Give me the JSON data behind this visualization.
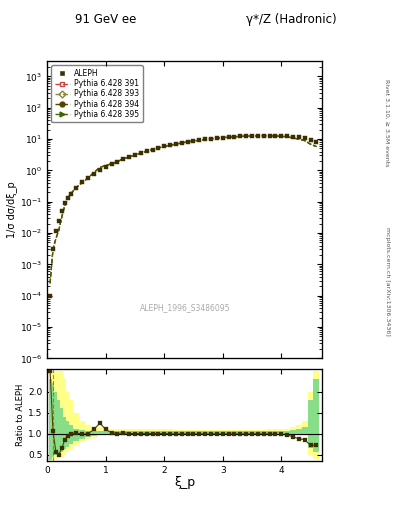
{
  "title_left": "91 GeV ee",
  "title_right": "γ*/Z (Hadronic)",
  "ylabel_main": "1/σ dσ/dξ_p",
  "ylabel_ratio": "Ratio to ALEPH",
  "xlabel": "ξ_p",
  "watermark": "ALEPH_1996_S3486095",
  "right_label_top": "Rivet 3.1.10, ≥ 3.5M events",
  "right_label_bottom": "mcplots.cern.ch [arXiv:1306.3436]",
  "ylim_main": [
    1e-06,
    3000.0
  ],
  "ylim_ratio": [
    0.35,
    2.55
  ],
  "xlim": [
    0.0,
    4.7
  ],
  "ratio_yticks": [
    0.5,
    1.0,
    1.5,
    2.0
  ],
  "xi_data": [
    0.05,
    0.1,
    0.15,
    0.2,
    0.25,
    0.3,
    0.35,
    0.4,
    0.5,
    0.6,
    0.7,
    0.8,
    0.9,
    1.0,
    1.1,
    1.2,
    1.3,
    1.4,
    1.5,
    1.6,
    1.7,
    1.8,
    1.9,
    2.0,
    2.1,
    2.2,
    2.3,
    2.4,
    2.5,
    2.6,
    2.7,
    2.8,
    2.9,
    3.0,
    3.1,
    3.2,
    3.3,
    3.4,
    3.5,
    3.6,
    3.7,
    3.8,
    3.9,
    4.0,
    4.1,
    4.2,
    4.3,
    4.4,
    4.5,
    4.6
  ],
  "aleph_data": [
    0.0001,
    0.003,
    0.012,
    0.025,
    0.05,
    0.09,
    0.13,
    0.18,
    0.28,
    0.42,
    0.58,
    0.78,
    1.0,
    1.3,
    1.6,
    1.9,
    2.3,
    2.7,
    3.1,
    3.6,
    4.1,
    4.6,
    5.2,
    5.8,
    6.4,
    7.0,
    7.6,
    8.2,
    8.8,
    9.3,
    9.8,
    10.3,
    10.8,
    11.2,
    11.6,
    12.0,
    12.3,
    12.5,
    12.7,
    12.8,
    12.9,
    12.8,
    12.7,
    12.5,
    12.2,
    11.8,
    11.3,
    10.5,
    9.5,
    8.0
  ],
  "pythia_ratio": [
    2.5,
    1.05,
    0.56,
    0.5,
    0.65,
    0.85,
    0.95,
    1.0,
    1.02,
    0.98,
    1.0,
    1.1,
    1.25,
    1.1,
    1.02,
    1.0,
    1.02,
    1.0,
    1.0,
    1.0,
    1.0,
    1.0,
    1.0,
    1.0,
    0.99,
    0.99,
    0.99,
    0.99,
    0.99,
    0.99,
    0.99,
    0.99,
    0.99,
    0.99,
    0.99,
    0.99,
    0.99,
    0.99,
    0.99,
    0.99,
    0.99,
    0.99,
    0.98,
    0.98,
    0.97,
    0.92,
    0.88,
    0.85,
    0.72,
    0.72
  ],
  "band_yellow_lo": [
    0.35,
    0.38,
    0.4,
    0.42,
    0.44,
    0.5,
    0.55,
    0.62,
    0.72,
    0.82,
    0.88,
    0.92,
    0.95,
    0.95,
    0.95,
    0.95,
    0.95,
    0.95,
    0.95,
    0.95,
    0.95,
    0.95,
    0.95,
    0.95,
    0.95,
    0.95,
    0.95,
    0.95,
    0.95,
    0.95,
    0.95,
    0.95,
    0.95,
    0.95,
    0.95,
    0.95,
    0.95,
    0.95,
    0.95,
    0.95,
    0.95,
    0.95,
    0.95,
    0.95,
    0.95,
    0.95,
    0.95,
    0.95,
    0.5,
    0.4
  ],
  "band_yellow_hi": [
    2.5,
    2.5,
    2.5,
    2.5,
    2.5,
    2.3,
    2.0,
    1.8,
    1.5,
    1.3,
    1.2,
    1.15,
    1.15,
    1.15,
    1.12,
    1.1,
    1.1,
    1.1,
    1.1,
    1.1,
    1.1,
    1.1,
    1.1,
    1.1,
    1.1,
    1.08,
    1.08,
    1.08,
    1.08,
    1.08,
    1.08,
    1.08,
    1.08,
    1.08,
    1.08,
    1.08,
    1.08,
    1.08,
    1.08,
    1.08,
    1.08,
    1.1,
    1.1,
    1.1,
    1.1,
    1.15,
    1.2,
    1.3,
    2.0,
    2.5
  ],
  "band_green_lo": [
    0.38,
    0.45,
    0.48,
    0.5,
    0.55,
    0.62,
    0.68,
    0.75,
    0.82,
    0.88,
    0.92,
    0.95,
    0.97,
    0.97,
    0.97,
    0.97,
    0.97,
    0.97,
    0.97,
    0.97,
    0.97,
    0.97,
    0.97,
    0.97,
    0.97,
    0.97,
    0.97,
    0.97,
    0.97,
    0.97,
    0.97,
    0.97,
    0.97,
    0.97,
    0.97,
    0.97,
    0.97,
    0.97,
    0.97,
    0.97,
    0.97,
    0.97,
    0.97,
    0.97,
    0.97,
    0.97,
    0.97,
    0.97,
    0.65,
    0.55
  ],
  "band_green_hi": [
    2.3,
    2.2,
    2.0,
    1.8,
    1.6,
    1.4,
    1.3,
    1.2,
    1.12,
    1.08,
    1.05,
    1.05,
    1.05,
    1.05,
    1.05,
    1.05,
    1.05,
    1.05,
    1.05,
    1.05,
    1.05,
    1.05,
    1.05,
    1.05,
    1.05,
    1.05,
    1.05,
    1.05,
    1.05,
    1.05,
    1.05,
    1.05,
    1.05,
    1.05,
    1.05,
    1.05,
    1.05,
    1.05,
    1.05,
    1.05,
    1.05,
    1.05,
    1.05,
    1.05,
    1.05,
    1.08,
    1.1,
    1.15,
    1.8,
    2.3
  ],
  "color_aleph": "#3d3000",
  "color_391": "#cc4444",
  "color_393": "#888833",
  "color_394": "#554400",
  "color_395": "#446600",
  "color_yellow": "#ffff88",
  "color_green": "#88dd88",
  "legend_entries": [
    "ALEPH",
    "Pythia 6.428 391",
    "Pythia 6.428 393",
    "Pythia 6.428 394",
    "Pythia 6.428 395"
  ]
}
